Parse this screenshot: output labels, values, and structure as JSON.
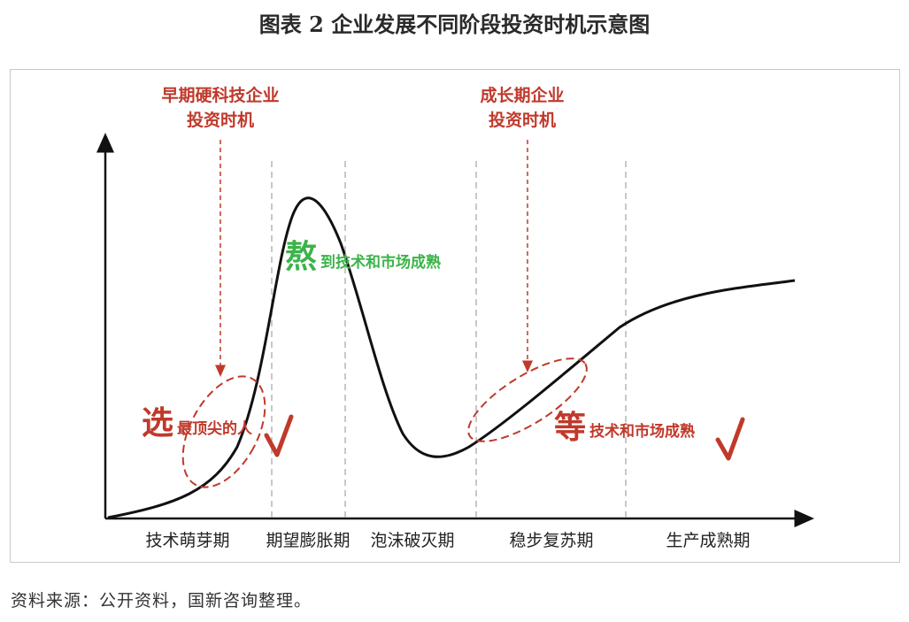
{
  "title": "图表 2  企业发展不同阶段投资时机示意图",
  "source": "资料来源：公开资料，国新咨询整理。",
  "stages": [
    "技术萌芽期",
    "期望膨胀期",
    "泡沫破灭期",
    "稳步复苏期",
    "生产成熟期"
  ],
  "annotation_early": {
    "line1": "早期硬科技企业",
    "line2": "投资时机"
  },
  "annotation_growth": {
    "line1": "成长期企业",
    "line2": "投资时机"
  },
  "select": {
    "big": "选",
    "small": "最顶尖的人"
  },
  "endure": {
    "big": "熬",
    "small": "到技术和市场成熟"
  },
  "wait": {
    "big": "等",
    "small": "技术和市场成熟"
  },
  "colors": {
    "red": "#c0392b",
    "green": "#3cb34a",
    "curve": "#111111",
    "divider": "#b5b5b5"
  }
}
